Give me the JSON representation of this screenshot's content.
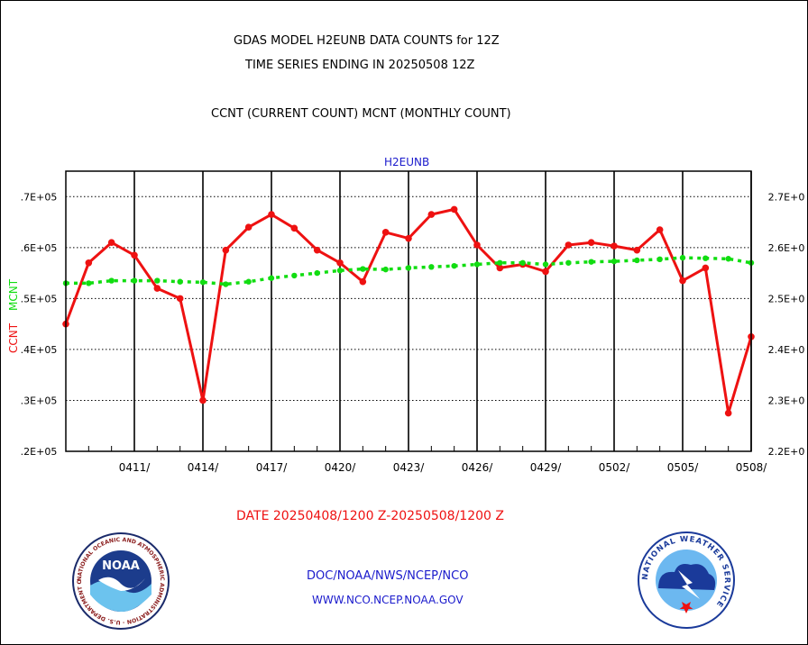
{
  "header": {
    "title_line1": "GDAS MODEL H2EUNB DATA COUNTS for 12Z",
    "title_line2": "TIME SERIES ENDING IN 20250508 12Z",
    "subtitle": "CCNT (CURRENT COUNT) MCNT (MONTHLY COUNT)"
  },
  "footer": {
    "date_range": "DATE 20250408/1200 Z-20250508/1200 Z",
    "org_path": "DOC/NOAA/NWS/NCEP/NCO",
    "website": "WWW.NCO.NCEP.NOAA.GOV"
  },
  "logos": {
    "noaa": {
      "text": "NOAA",
      "ring_text": "NATIONAL OCEANIC AND ATMOSPHERIC ADMINISTRATION · U.S. DEPARTMENT OF COMMERCE"
    },
    "nws": {
      "ring_text": "NATIONAL WEATHER SERVICE"
    }
  },
  "colors": {
    "ccnt": "#ee1111",
    "mcnt": "#11dd11",
    "title": "#000000",
    "station": "#1a1acc"
  },
  "chart_data": {
    "type": "line",
    "title": "H2EUNB",
    "xlabel": "",
    "y_left_label_1": "CCNT",
    "y_left_label_2": "MCNT",
    "x_ticks": [
      "0411/",
      "0414/",
      "0417/",
      "0420/",
      "0423/",
      "0426/",
      "0429/",
      "0502/",
      "0505/",
      "0508/"
    ],
    "y_left_ticks": [
      ".2E+05",
      ".3E+05",
      ".4E+05",
      ".5E+05",
      ".6E+05",
      ".7E+05"
    ],
    "y_right_ticks": [
      "2.2E+0",
      "2.3E+0",
      "2.4E+0",
      "2.5E+0",
      "2.6E+0",
      "2.7E+0"
    ],
    "ylim_left": [
      20000,
      75000
    ],
    "ylim_right": [
      220000,
      275000
    ],
    "grid": true,
    "x_days_range": [
      0,
      30
    ],
    "series": [
      {
        "name": "CCNT",
        "axis": "left",
        "style": "solid",
        "x": [
          0,
          1,
          2,
          3,
          4,
          5,
          6,
          7,
          8,
          9,
          10,
          11,
          12,
          13,
          14,
          15,
          16,
          17,
          18,
          19,
          20,
          21,
          22,
          23,
          24,
          25,
          26,
          27,
          28,
          29,
          30
        ],
        "values": [
          45000,
          57000,
          61000,
          58500,
          52000,
          50000,
          30000,
          59500,
          64000,
          66500,
          63800,
          59500,
          57000,
          53300,
          63000,
          61800,
          66500,
          67500,
          60500,
          56000,
          56700,
          55300,
          60500,
          61000,
          60300,
          59500,
          63500,
          53500,
          56000,
          27500,
          42500
        ]
      },
      {
        "name": "MCNT",
        "axis": "right",
        "style": "dashed",
        "x": [
          0,
          1,
          2,
          3,
          4,
          5,
          6,
          7,
          8,
          9,
          10,
          11,
          12,
          13,
          14,
          15,
          16,
          17,
          18,
          19,
          20,
          21,
          22,
          23,
          24,
          25,
          26,
          27,
          28,
          29,
          30
        ],
        "values": [
          253000,
          253000,
          253500,
          253500,
          253500,
          253300,
          253200,
          252800,
          253300,
          254000,
          254500,
          255000,
          255500,
          255800,
          255700,
          256000,
          256200,
          256400,
          256700,
          257000,
          257000,
          256700,
          257000,
          257200,
          257300,
          257500,
          257700,
          258000,
          257900,
          257800,
          257000
        ]
      }
    ]
  }
}
